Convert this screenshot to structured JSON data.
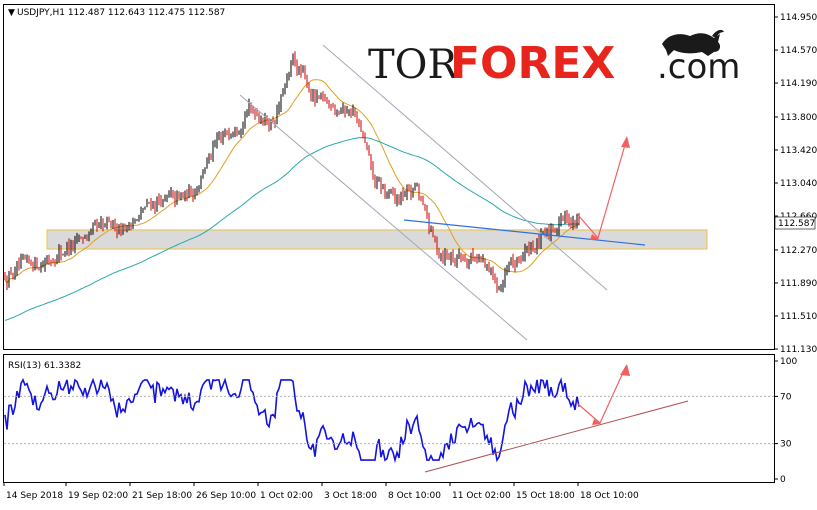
{
  "header": {
    "symbol_line": "USDJPY,H1  112.487 112.643 112.475 112.587",
    "rsi_line": "RSI(13) 61.3382"
  },
  "logo": {
    "prefix": "TOR",
    "brand": "FOREX",
    "suffix": ".com",
    "brand_color": "#e8251c",
    "icon": "bull-icon"
  },
  "colors": {
    "candle_up": "#000000",
    "candle_down": "#cc0000",
    "ma_fast": "#e0a020",
    "ma_slow": "#2aa8b0",
    "rsi_line": "#1414e0",
    "channel": "#a0a8b8",
    "trendline": "#3070e0",
    "forecast_arrow": "#f06060",
    "zone_fill": "#d4d4d4",
    "zone_border": "#f0c040",
    "rsi_support": "#b05050"
  },
  "chart_data": [
    {
      "type": "candlestick",
      "title": "USDJPY,H1",
      "ohlc_header": [
        "112.487",
        "112.643",
        "112.475",
        "112.587"
      ],
      "last_price_label": "112.587",
      "y_ticks": [
        "114.950",
        "114.570",
        "114.190",
        "113.800",
        "113.420",
        "113.040",
        "112.660",
        "112.270",
        "111.890",
        "111.510",
        "111.130"
      ],
      "ylim": [
        111.13,
        114.95
      ],
      "x_ticks": [
        "14 Sep 2018",
        "19 Sep 02:00",
        "21 Sep 18:00",
        "26 Sep 10:00",
        "1 Oct 02:00",
        "3 Oct 18:00",
        "8 Oct 10:00",
        "11 Oct 02:00",
        "15 Oct 18:00",
        "18 Oct 10:00"
      ],
      "close_path": [
        [
          "14 Sep 2018",
          111.95
        ],
        [
          "17 Sep",
          112.1
        ],
        [
          "18 Sep",
          112.15
        ],
        [
          "19 Sep 02:00",
          112.3
        ],
        [
          "20 Sep",
          112.45
        ],
        [
          "21 Sep",
          112.55
        ],
        [
          "21 Sep 18:00",
          112.55
        ],
        [
          "24 Sep",
          112.8
        ],
        [
          "25 Sep",
          112.85
        ],
        [
          "26 Sep 10:00",
          112.9
        ],
        [
          "27 Sep",
          113.4
        ],
        [
          "28 Sep",
          113.7
        ],
        [
          "1 Oct 02:00",
          113.9
        ],
        [
          "2 Oct",
          113.7
        ],
        [
          "3 Oct",
          114.45
        ],
        [
          "3 Oct 18:00",
          114.0
        ],
        [
          "4 Oct",
          113.95
        ],
        [
          "5 Oct",
          113.85
        ],
        [
          "8 Oct",
          113.0
        ],
        [
          "8 Oct 10:00",
          112.85
        ],
        [
          "9 Oct",
          113.0
        ],
        [
          "10 Oct",
          112.25
        ],
        [
          "11 Oct 02:00",
          112.2
        ],
        [
          "12 Oct",
          112.2
        ],
        [
          "15 Oct",
          111.85
        ],
        [
          "15 Oct 18:00",
          112.2
        ],
        [
          "16 Oct",
          112.35
        ],
        [
          "17 Oct",
          112.65
        ],
        [
          "18 Oct 10:00",
          112.587
        ]
      ],
      "support_zone": [
        112.28,
        112.5
      ]
    },
    {
      "type": "line",
      "title": "RSI(13)",
      "last_value": 61.3382,
      "y_ticks": [
        "100",
        "70",
        "30",
        "0"
      ],
      "ylim": [
        0,
        100
      ],
      "levels": [
        70,
        30
      ]
    }
  ]
}
